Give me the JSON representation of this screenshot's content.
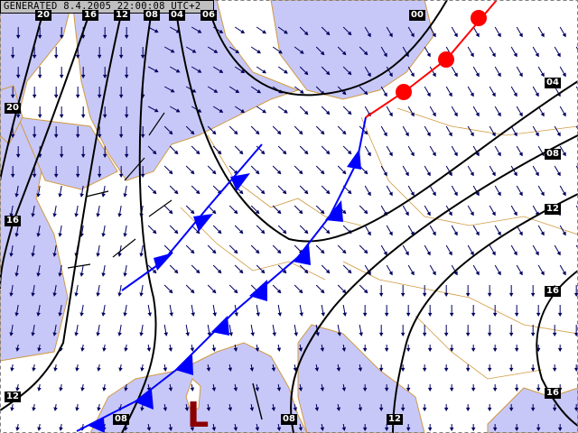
{
  "header": {
    "generated_text": "GENERATED 8.4.2005 22:00:08 UTC+2"
  },
  "pressure_system": {
    "label": "L",
    "type": "low",
    "color": "#8b0000"
  },
  "isobar_labels": [
    "20",
    "16",
    "12",
    "08",
    "04",
    "06",
    "00",
    "04",
    "08",
    "12",
    "16",
    "16",
    "20",
    "16",
    "12",
    "08",
    "08",
    "12"
  ],
  "fronts": [
    {
      "type": "cold",
      "color": "#0000ff"
    },
    {
      "type": "cold",
      "color": "#0000ff"
    },
    {
      "type": "warm",
      "color": "#ff0000"
    }
  ],
  "colors": {
    "sea": "#c8c8f8",
    "land": "#ffffff",
    "coast": "#d09a40",
    "wind": "#000060",
    "isobar": "#000000"
  }
}
